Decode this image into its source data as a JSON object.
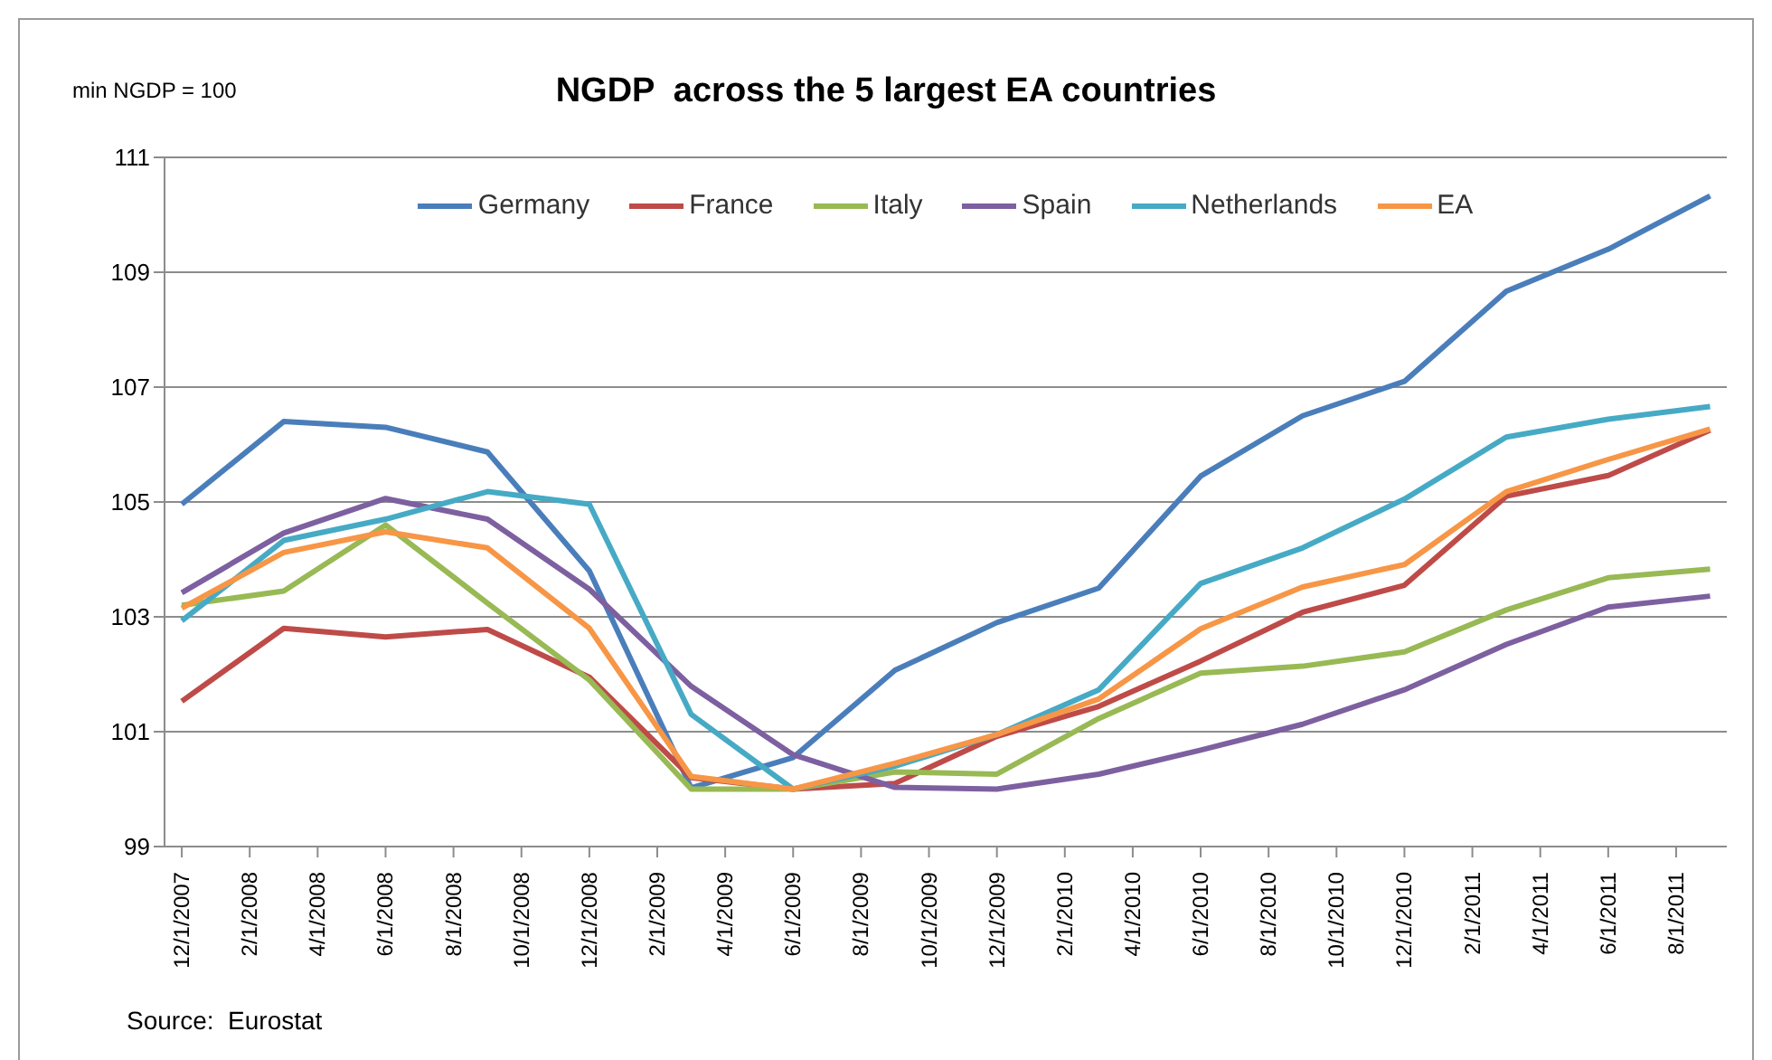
{
  "chart_data": {
    "type": "line",
    "title": "NGDP  across the 5 largest EA countries",
    "ylabel": "min NGDP = 100",
    "annotations": [
      "Source:  Eurostat"
    ],
    "x": [
      "2007-12-01",
      "2008-03-01",
      "2008-06-01",
      "2008-09-01",
      "2008-12-01",
      "2009-03-01",
      "2009-06-01",
      "2009-09-01",
      "2009-12-01",
      "2010-03-01",
      "2010-06-01",
      "2010-09-01",
      "2010-12-01",
      "2011-03-01",
      "2011-06-01",
      "2011-09-01"
    ],
    "series": [
      {
        "name": "Germany",
        "color": "#4a7ebb",
        "values": [
          104.96,
          106.4,
          106.3,
          105.87,
          103.8,
          100.02,
          100.55,
          102.07,
          102.9,
          103.5,
          105.45,
          106.5,
          107.1,
          108.67,
          109.4,
          110.33
        ]
      },
      {
        "name": "France",
        "color": "#be4b48",
        "values": [
          101.53,
          102.8,
          102.65,
          102.78,
          101.95,
          100.2,
          100.0,
          100.1,
          100.92,
          101.44,
          102.23,
          103.08,
          103.55,
          105.1,
          105.46,
          106.25
        ]
      },
      {
        "name": "Italy",
        "color": "#98b954",
        "values": [
          103.2,
          103.45,
          104.6,
          103.24,
          101.9,
          100.0,
          100.0,
          100.3,
          100.26,
          101.23,
          102.02,
          102.14,
          102.39,
          103.12,
          103.68,
          103.83
        ]
      },
      {
        "name": "Spain",
        "color": "#7d60a0",
        "values": [
          103.42,
          104.46,
          105.06,
          104.7,
          103.48,
          101.79,
          100.6,
          100.03,
          100.0,
          100.26,
          100.68,
          101.13,
          101.73,
          102.52,
          103.17,
          103.36
        ]
      },
      {
        "name": "Netherlands",
        "color": "#46aac5",
        "values": [
          102.93,
          104.33,
          104.7,
          105.18,
          104.96,
          101.3,
          100.0,
          100.4,
          100.95,
          101.73,
          103.58,
          104.2,
          105.05,
          106.13,
          106.44,
          106.66
        ]
      },
      {
        "name": "EA",
        "color": "#f79646",
        "values": [
          103.15,
          104.12,
          104.48,
          104.2,
          102.8,
          100.22,
          100.0,
          100.45,
          100.95,
          101.57,
          102.79,
          103.52,
          103.91,
          105.18,
          105.74,
          106.27
        ]
      }
    ],
    "xlim": [
      "2007-11-16",
      "2011-09-16"
    ],
    "xticks": [
      {
        "value": "2007-12-01",
        "label": "12/1/2007"
      },
      {
        "value": "2008-02-01",
        "label": "2/1/2008"
      },
      {
        "value": "2008-04-01",
        "label": "4/1/2008"
      },
      {
        "value": "2008-06-01",
        "label": "6/1/2008"
      },
      {
        "value": "2008-08-01",
        "label": "8/1/2008"
      },
      {
        "value": "2008-10-01",
        "label": "10/1/2008"
      },
      {
        "value": "2008-12-01",
        "label": "12/1/2008"
      },
      {
        "value": "2009-02-01",
        "label": "2/1/2009"
      },
      {
        "value": "2009-04-01",
        "label": "4/1/2009"
      },
      {
        "value": "2009-06-01",
        "label": "6/1/2009"
      },
      {
        "value": "2009-08-01",
        "label": "8/1/2009"
      },
      {
        "value": "2009-10-01",
        "label": "10/1/2009"
      },
      {
        "value": "2009-12-01",
        "label": "12/1/2009"
      },
      {
        "value": "2010-02-01",
        "label": "2/1/2010"
      },
      {
        "value": "2010-04-01",
        "label": "4/1/2010"
      },
      {
        "value": "2010-06-01",
        "label": "6/1/2010"
      },
      {
        "value": "2010-08-01",
        "label": "8/1/2010"
      },
      {
        "value": "2010-10-01",
        "label": "10/1/2010"
      },
      {
        "value": "2010-12-01",
        "label": "12/1/2010"
      },
      {
        "value": "2011-02-01",
        "label": "2/1/2011"
      },
      {
        "value": "2011-04-01",
        "label": "4/1/2011"
      },
      {
        "value": "2011-06-01",
        "label": "6/1/2011"
      },
      {
        "value": "2011-08-01",
        "label": "8/1/2011"
      }
    ],
    "ylim": [
      99,
      111
    ],
    "yticks": [
      99,
      101,
      103,
      105,
      107,
      109,
      111
    ],
    "grid": "y",
    "legend": "top",
    "marker": "none",
    "line_style": "solid"
  }
}
